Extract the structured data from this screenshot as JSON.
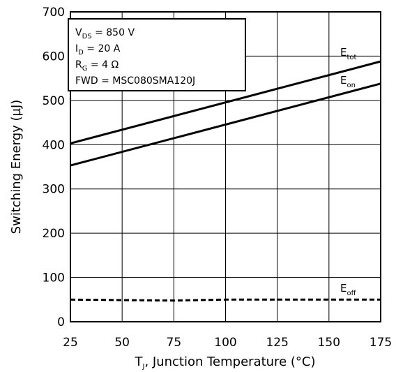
{
  "chart_data": {
    "type": "line",
    "xlabel": {
      "main": "T",
      "sub": "J",
      "rest": ", Junction Temperature (°C)"
    },
    "ylabel": "Switching Energy (µJ)",
    "xlim": [
      25,
      175
    ],
    "ylim": [
      0,
      700
    ],
    "xticks": [
      "25",
      "50",
      "75",
      "100",
      "125",
      "150",
      "175"
    ],
    "yticks": [
      "0",
      "100",
      "200",
      "300",
      "400",
      "500",
      "600",
      "700"
    ],
    "grid": true,
    "conditions": [
      {
        "main": "V",
        "sub": "DS",
        "rest": " = 850 V"
      },
      {
        "main": "I",
        "sub": "D",
        "rest": " = 20 A"
      },
      {
        "main": "R",
        "sub": "G",
        "rest": " = 4 Ω"
      },
      {
        "main": "FWD = MSC080SMA120J",
        "sub": "",
        "rest": ""
      }
    ],
    "series": [
      {
        "name": "E",
        "sub": "tot",
        "style": "solid",
        "x": [
          25,
          175
        ],
        "y": [
          403,
          588
        ]
      },
      {
        "name": "E",
        "sub": "on",
        "style": "solid",
        "x": [
          25,
          175
        ],
        "y": [
          353,
          538
        ]
      },
      {
        "name": "E",
        "sub": "off",
        "style": "dashed",
        "x": [
          25,
          75,
          100,
          175
        ],
        "y": [
          50,
          48,
          50,
          50
        ]
      }
    ]
  }
}
